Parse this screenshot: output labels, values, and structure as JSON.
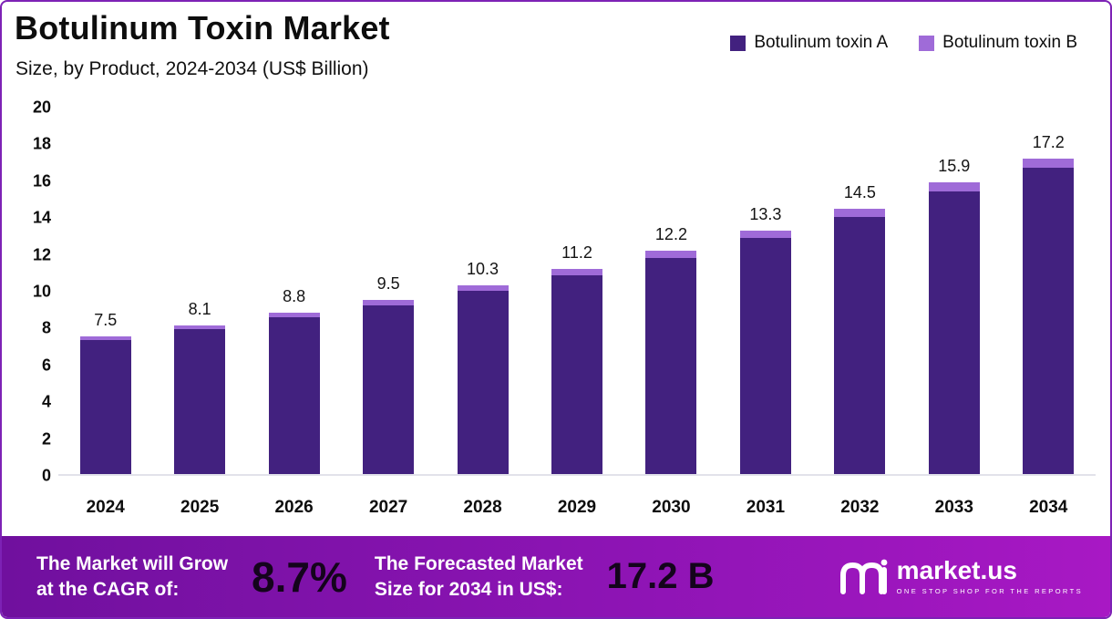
{
  "header": {
    "title": "Botulinum Toxin Market",
    "subtitle": "Size, by Product, 2024-2034 (US$ Billion)"
  },
  "legend": [
    {
      "label": "Botulinum toxin A",
      "color": "#42217f"
    },
    {
      "label": "Botulinum toxin B",
      "color": "#9f6bd8"
    }
  ],
  "chart_data": {
    "type": "bar",
    "stacked": true,
    "title": "Botulinum Toxin Market Size, by Product, 2024-2034 (US$ Billion)",
    "categories": [
      "2024",
      "2025",
      "2026",
      "2027",
      "2028",
      "2029",
      "2030",
      "2031",
      "2032",
      "2033",
      "2034"
    ],
    "series": [
      {
        "name": "Botulinum toxin A",
        "color": "#42217f",
        "values": [
          7.3,
          7.9,
          8.55,
          9.2,
          10.0,
          10.85,
          11.8,
          12.9,
          14.05,
          15.4,
          16.7
        ]
      },
      {
        "name": "Botulinum toxin B",
        "color": "#9f6bd8",
        "values": [
          0.2,
          0.2,
          0.25,
          0.3,
          0.3,
          0.35,
          0.4,
          0.4,
          0.45,
          0.5,
          0.5
        ]
      }
    ],
    "totals": [
      7.5,
      8.1,
      8.8,
      9.5,
      10.3,
      11.2,
      12.2,
      13.3,
      14.5,
      15.9,
      17.2
    ],
    "total_labels": [
      "7.5",
      "8.1",
      "8.8",
      "9.5",
      "10.3",
      "11.2",
      "12.2",
      "13.3",
      "14.5",
      "15.9",
      "17.2"
    ],
    "xlabel": "",
    "ylabel": "",
    "ylim": [
      0,
      20
    ],
    "y_ticks": [
      0,
      2,
      4,
      6,
      8,
      10,
      12,
      14,
      16,
      18,
      20
    ],
    "grid": false,
    "legend_position": "top-right"
  },
  "banner": {
    "stat1_label_line1": "The Market will Grow",
    "stat1_label_line2": "at the CAGR of:",
    "stat1_value": "8.7%",
    "stat2_label_line1": "The Forecasted Market",
    "stat2_label_line2": "Size for 2034 in US$:",
    "stat2_value": "17.2 B",
    "brand": "market.us",
    "brand_tagline": "ONE STOP SHOP FOR THE REPORTS"
  },
  "colors": {
    "accent_border": "#7d22b5",
    "bar_a": "#42217f",
    "bar_b": "#9f6bd8",
    "banner_gradient_start": "#70109e",
    "banner_gradient_end": "#a818c4"
  }
}
